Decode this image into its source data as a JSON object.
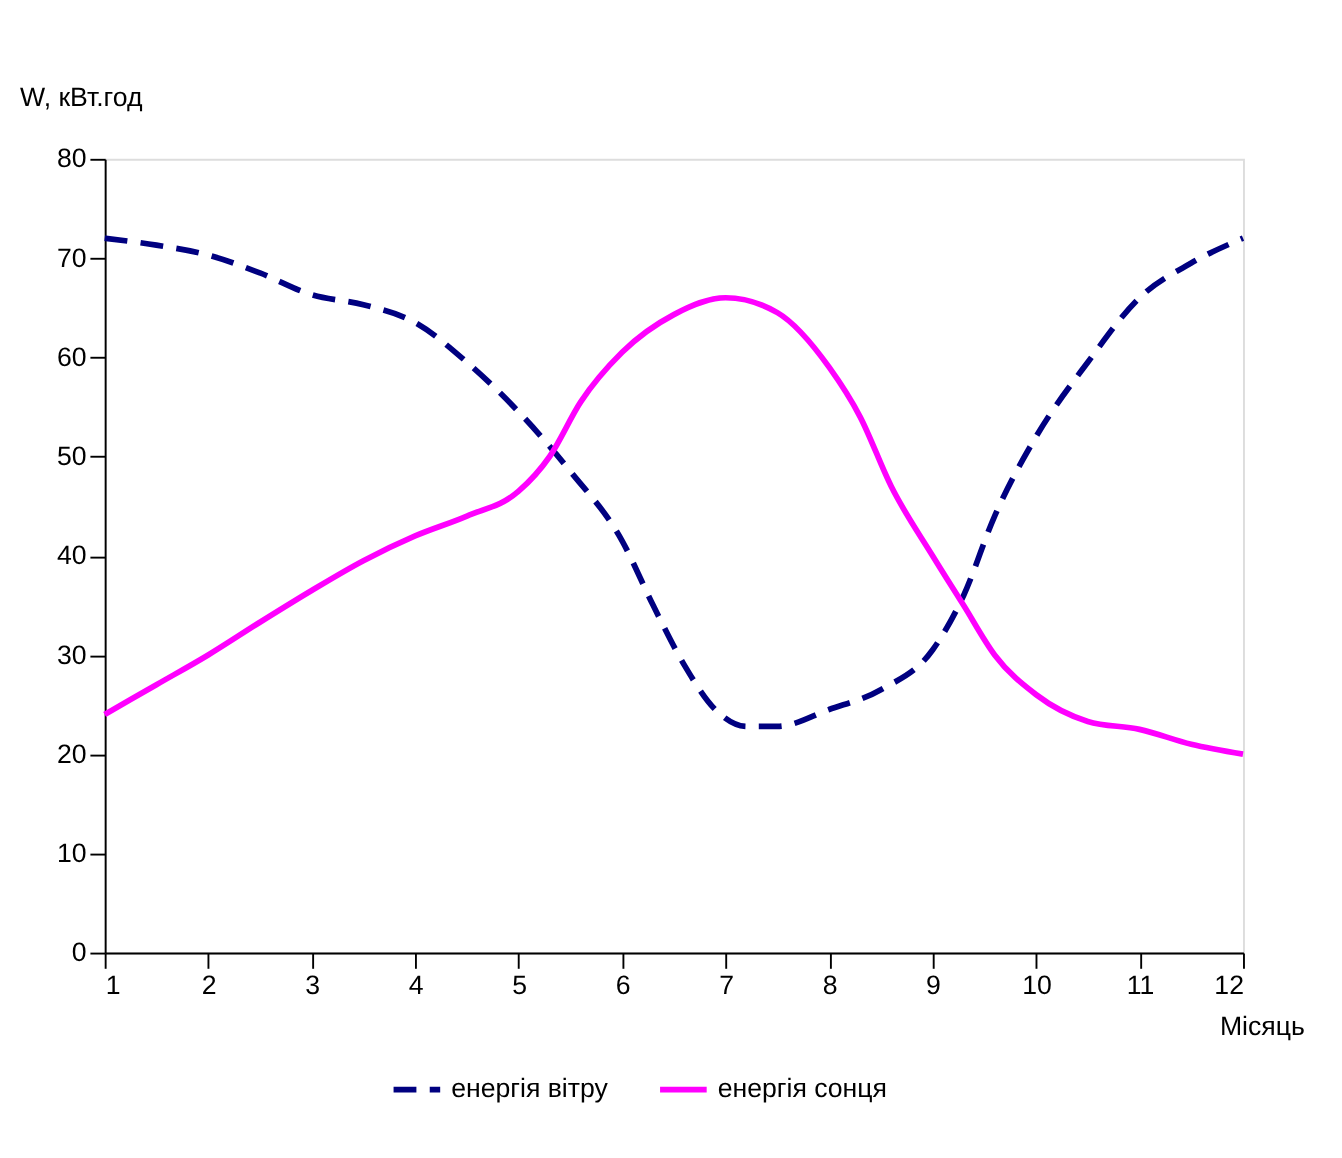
{
  "chart_data": {
    "type": "line",
    "xlabel": "Місяць",
    "ylabel": "W, кВт.год",
    "xlim": [
      1,
      12
    ],
    "xticks": [
      1,
      2,
      3,
      4,
      5,
      6,
      7,
      8,
      9,
      10,
      11,
      12
    ],
    "ylim": [
      0,
      80
    ],
    "yticks": [
      0,
      10,
      20,
      30,
      40,
      50,
      60,
      70,
      80
    ],
    "grid": false,
    "legend": "bottom",
    "marker": "none",
    "series": [
      {
        "name": "енергія вітру",
        "color": "#000080",
        "line_style": "dashed",
        "x": [
          1,
          1.5,
          2,
          2.5,
          3,
          3.5,
          4,
          4.5,
          5,
          5.5,
          6,
          6.3,
          6.6,
          6.9,
          7.2,
          7.5,
          8,
          8.5,
          9,
          9.3,
          9.6,
          10,
          10.5,
          11,
          11.5,
          12
        ],
        "values": [
          72,
          71.3,
          70.3,
          68.5,
          66.3,
          65.3,
          63.5,
          59.5,
          54.5,
          48.5,
          41.5,
          35,
          29,
          24.5,
          22.8,
          22.8,
          24.5,
          26.5,
          30.5,
          36,
          44,
          52,
          59.5,
          66,
          69.5,
          72
        ]
      },
      {
        "name": "енергія сонця",
        "color": "#ff00ff",
        "line_style": "solid",
        "x": [
          1,
          1.5,
          2,
          2.5,
          3,
          3.5,
          4,
          4.5,
          5,
          5.3,
          5.6,
          6,
          6.5,
          7,
          7.5,
          8,
          8.3,
          8.6,
          9,
          9.3,
          9.6,
          10,
          10.5,
          11,
          11.5,
          12
        ],
        "values": [
          24,
          27,
          30,
          33.3,
          36.5,
          39.5,
          42,
          44,
          46.5,
          50,
          55.5,
          60.5,
          64.3,
          66,
          64.5,
          59,
          54,
          47,
          40,
          35,
          30,
          26,
          23.3,
          22.5,
          21,
          20
        ]
      }
    ]
  }
}
